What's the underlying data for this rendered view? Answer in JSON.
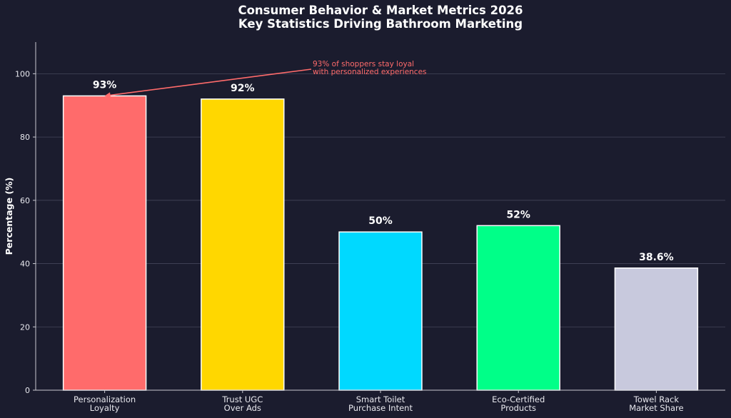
{
  "chart_data": {
    "type": "bar",
    "title_lines": [
      "Consumer Behavior & Market Metrics 2026",
      "Key Statistics Driving Bathroom Marketing"
    ],
    "xlabel": "",
    "ylabel": "Percentage (%)",
    "ylim": [
      0,
      110
    ],
    "yticks": [
      0,
      20,
      40,
      60,
      80,
      100
    ],
    "grid": true,
    "categories": [
      [
        "Personalization",
        "Loyalty"
      ],
      [
        "Trust UGC",
        "Over Ads"
      ],
      [
        "Smart Toilet",
        "Purchase Intent"
      ],
      [
        "Eco-Certified",
        "Products"
      ],
      [
        "Towel Rack",
        "Market Share"
      ]
    ],
    "values": [
      93,
      92,
      50,
      52,
      38.6
    ],
    "value_labels": [
      "93%",
      "92%",
      "50%",
      "52%",
      "38.6%"
    ],
    "colors": [
      "#ff6b6b",
      "#ffd700",
      "#00d9ff",
      "#00ff88",
      "#c8c9dd"
    ],
    "annotation": {
      "text_lines": [
        "93% of shoppers stay loyal",
        "with personalized experiences"
      ],
      "target_category_index": 0,
      "target_value": 93,
      "color": "#ff6b6b"
    }
  },
  "theme": {
    "background": "#1b1c2e",
    "grid_color": "#45465a",
    "axis_color": "#c8c8d0",
    "bar_edge": "#ffffff"
  }
}
